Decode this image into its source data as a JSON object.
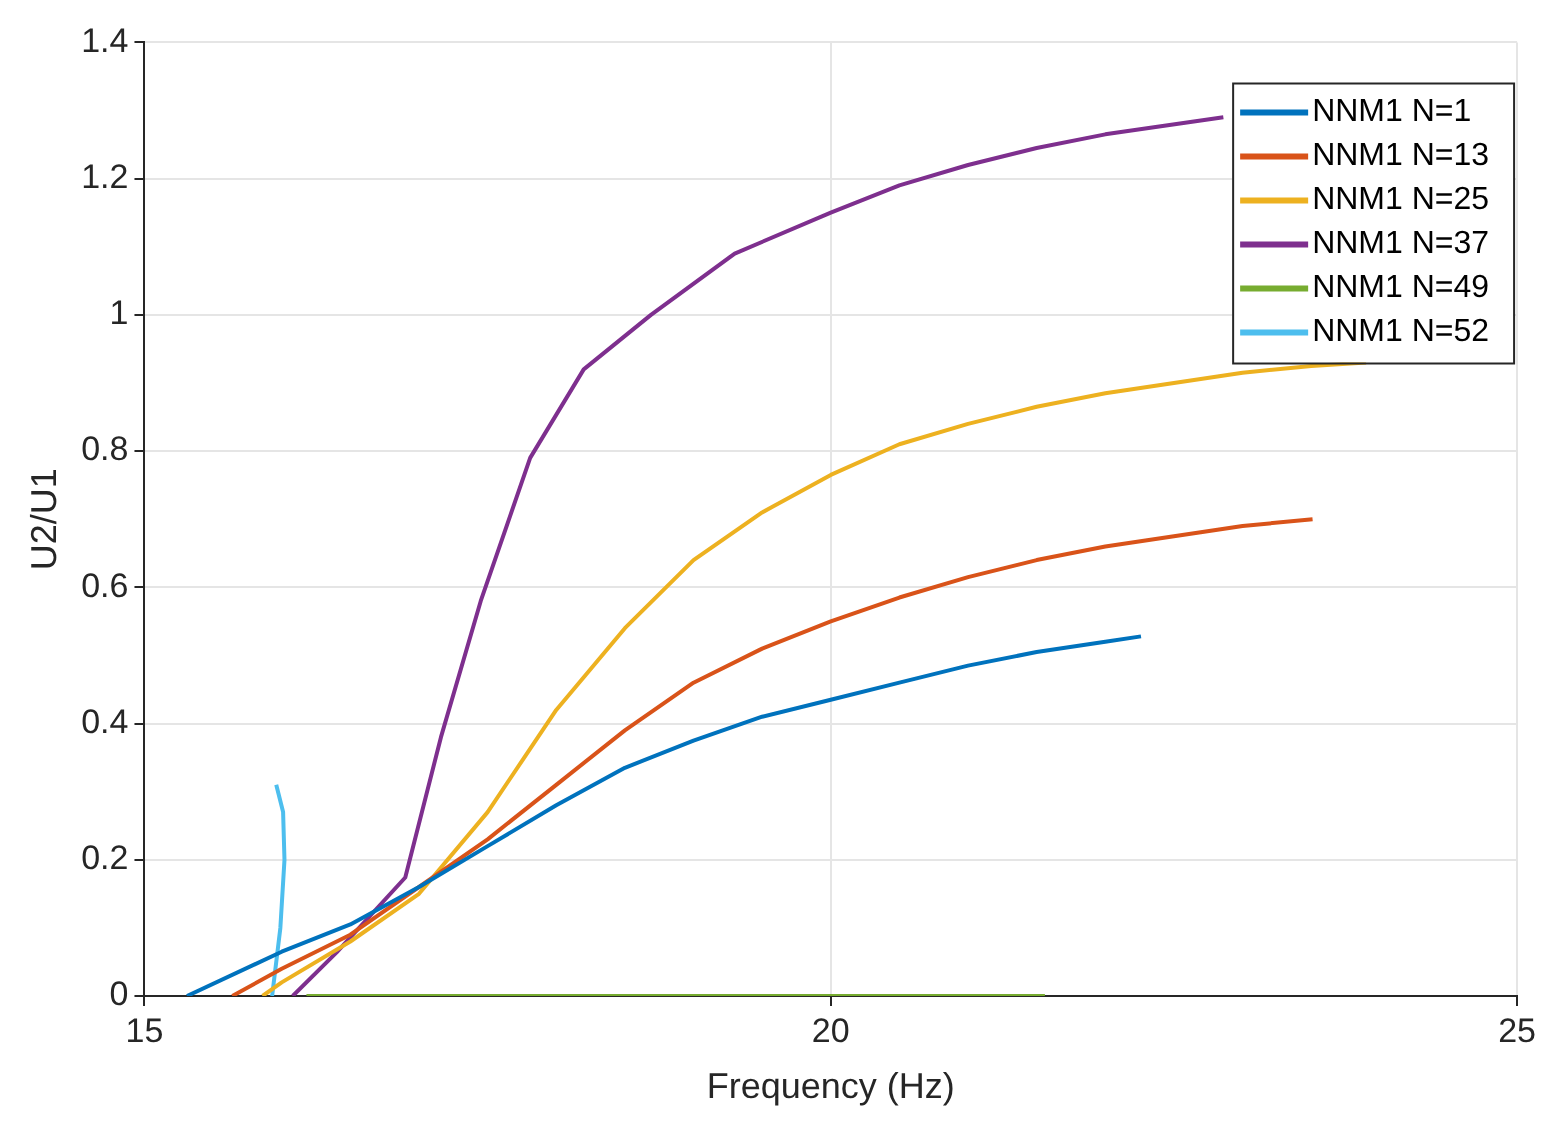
{
  "chart_data": {
    "type": "line",
    "xlabel": "Frequency (Hz)",
    "ylabel": "U2/U1",
    "xlim": [
      15,
      25
    ],
    "xticks": [
      15,
      20,
      25
    ],
    "ylim": [
      0,
      1.4
    ],
    "yticks": [
      0,
      0.2,
      0.4,
      0.6,
      0.8,
      1,
      1.2,
      1.4
    ],
    "grid": true,
    "legend": "top right",
    "marker": "none",
    "line_style": "solid",
    "series": [
      {
        "name": "NNM1 N=1",
        "color": "#0072bd",
        "x": [
          15.31,
          16,
          16.5,
          17,
          17.5,
          18,
          18.5,
          19,
          19.5,
          20,
          20.5,
          21,
          21.5,
          22,
          22.26
        ],
        "values": [
          0,
          0.065,
          0.105,
          0.16,
          0.22,
          0.28,
          0.335,
          0.375,
          0.41,
          0.435,
          0.46,
          0.485,
          0.505,
          0.52,
          0.528
        ]
      },
      {
        "name": "NNM1 N=13",
        "color": "#d95319",
        "x": [
          15.64,
          16,
          16.5,
          17,
          17.5,
          18,
          18.5,
          19,
          19.5,
          20,
          20.5,
          21,
          21.5,
          22,
          22.5,
          23,
          23.51
        ],
        "values": [
          0,
          0.04,
          0.09,
          0.16,
          0.23,
          0.31,
          0.39,
          0.46,
          0.51,
          0.55,
          0.585,
          0.615,
          0.64,
          0.66,
          0.675,
          0.69,
          0.7
        ]
      },
      {
        "name": "NNM1 N=25",
        "color": "#edb120",
        "x": [
          15.86,
          16,
          16.5,
          17,
          17.5,
          18,
          18.5,
          19,
          19.5,
          20,
          20.5,
          21,
          21.5,
          22,
          22.5,
          23,
          23.5,
          23.9
        ],
        "values": [
          0,
          0.02,
          0.08,
          0.15,
          0.27,
          0.42,
          0.54,
          0.64,
          0.71,
          0.765,
          0.81,
          0.84,
          0.865,
          0.885,
          0.9,
          0.915,
          0.925,
          0.93
        ]
      },
      {
        "name": "NNM1 N=37",
        "color": "#7e2f8e",
        "x": [
          16.08,
          16.4,
          16.9,
          17.16,
          17.45,
          17.81,
          18.2,
          18.69,
          19.3,
          20,
          20.5,
          21,
          21.5,
          22,
          22.86
        ],
        "values": [
          0,
          0.064,
          0.174,
          0.38,
          0.58,
          0.79,
          0.92,
          1,
          1.09,
          1.15,
          1.19,
          1.22,
          1.245,
          1.265,
          1.29
        ]
      },
      {
        "name": "NNM1 N=49",
        "color": "#77ac30",
        "x": [
          16.18,
          21.56
        ],
        "values": [
          0,
          0
        ]
      },
      {
        "name": "NNM1 N=52",
        "color": "#4dbeee",
        "x": [
          15.93,
          15.99,
          16.02,
          16.01,
          15.96
        ],
        "values": [
          0,
          0.1,
          0.2,
          0.27,
          0.31
        ]
      }
    ]
  }
}
